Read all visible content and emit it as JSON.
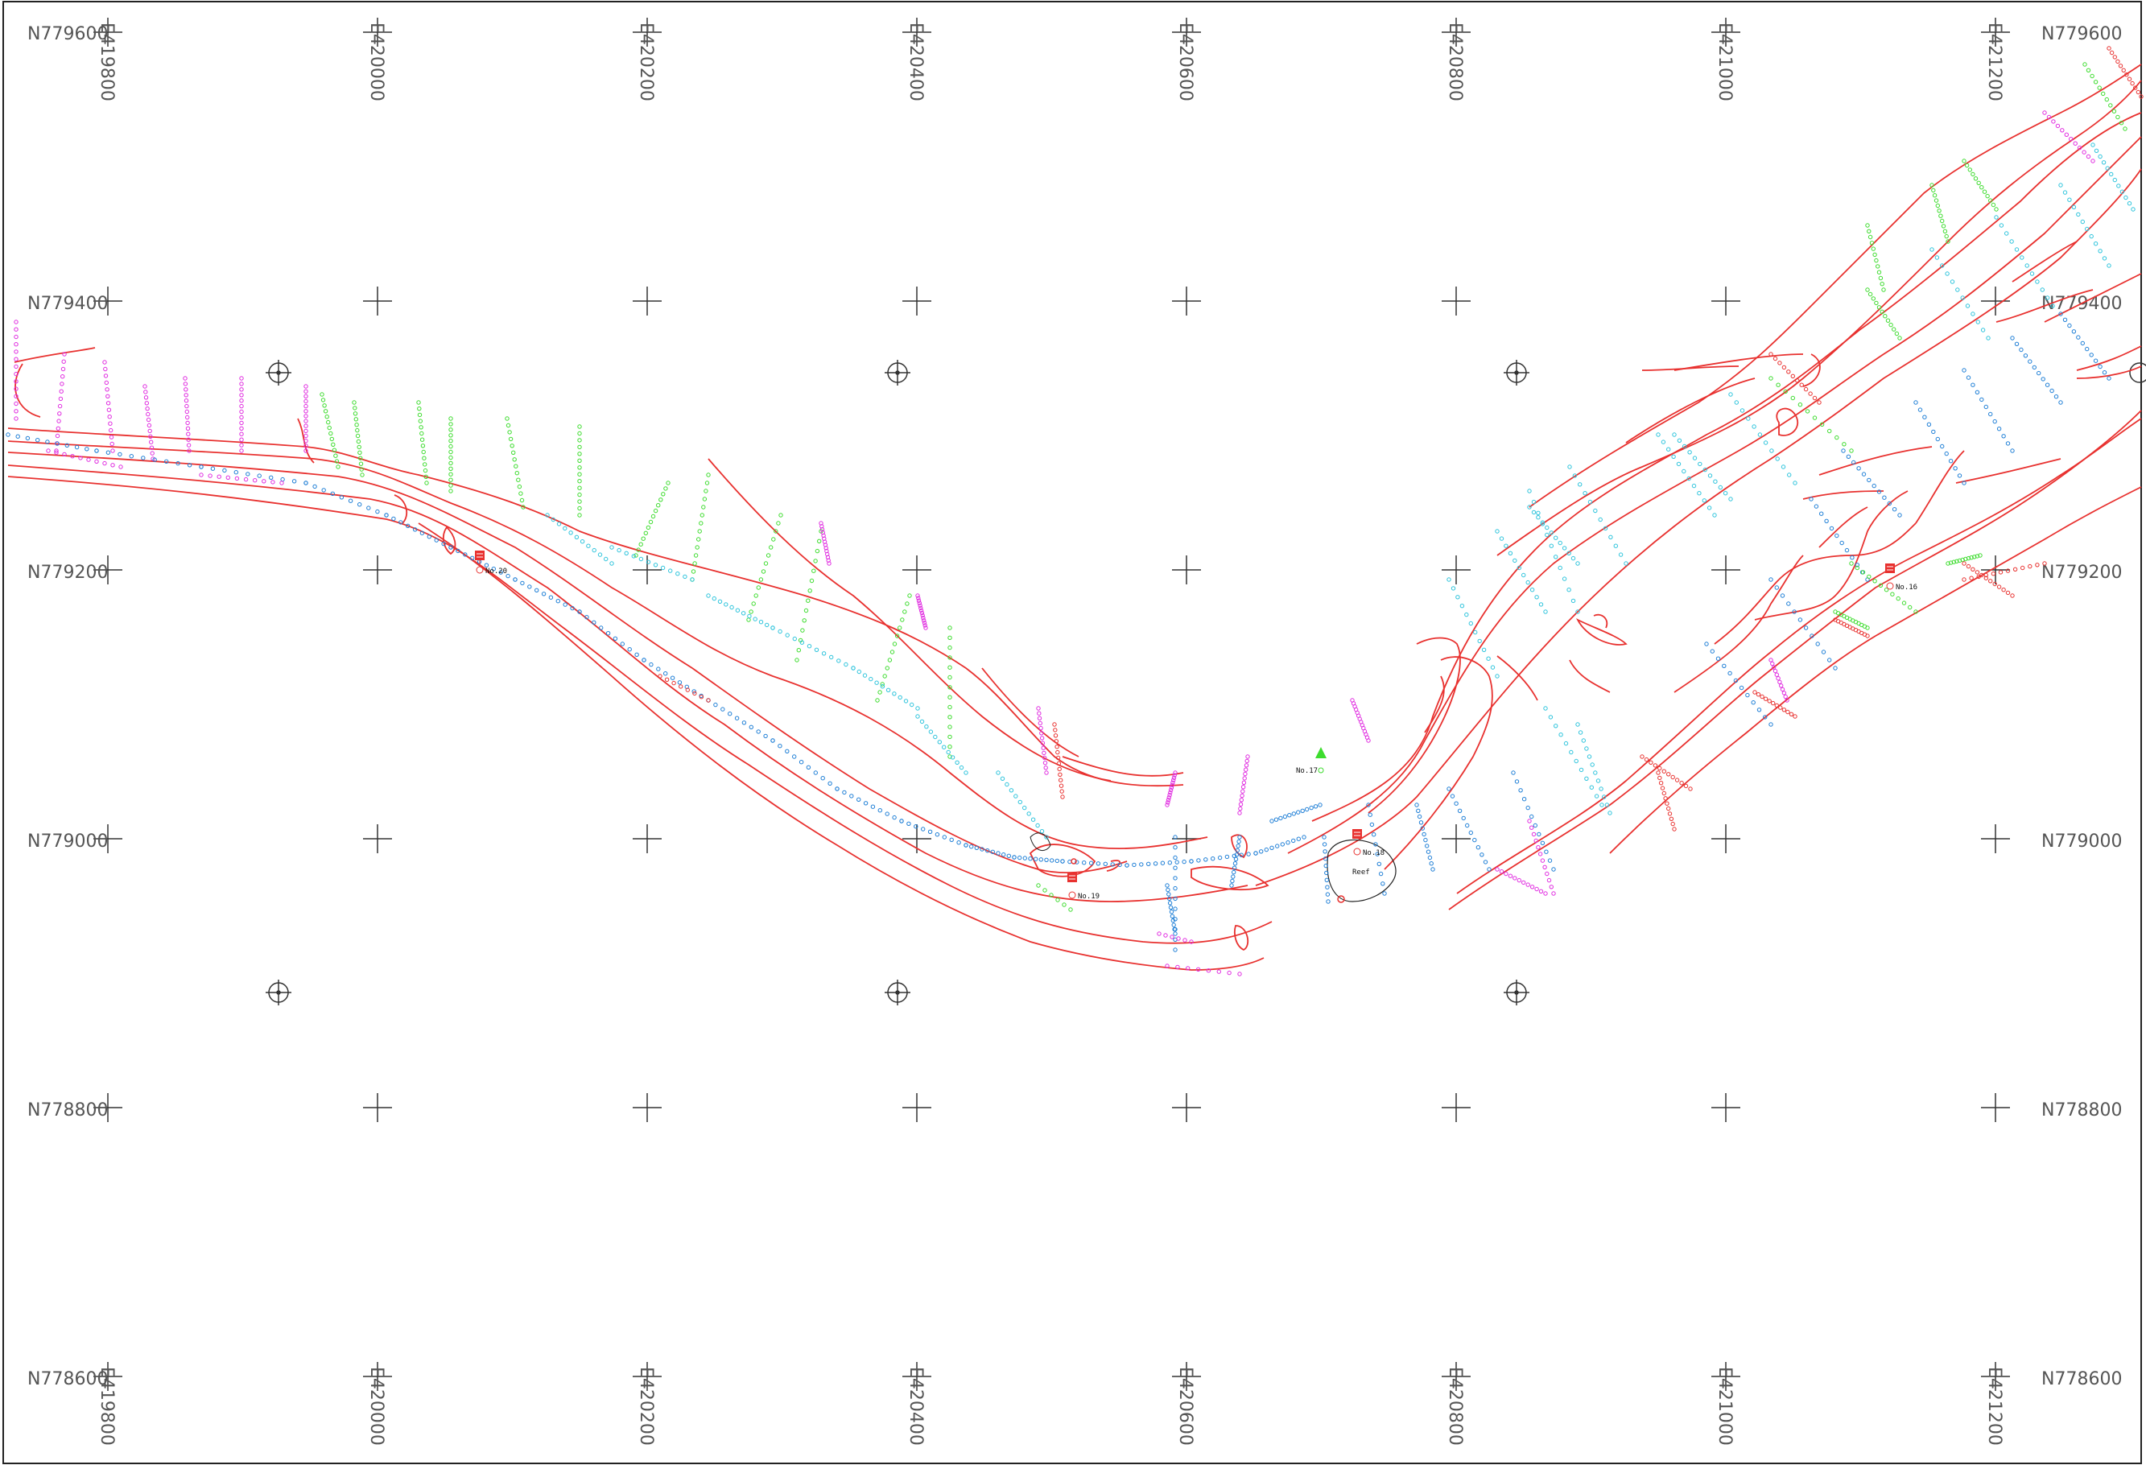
{
  "map": {
    "colors": {
      "contour": "#e8312f",
      "sounding_deep": "#1f7fd6",
      "sounding_mid": "#2ec4dc",
      "sounding_shallow": "#3ddc2e",
      "sounding_high": "#e02ce0",
      "sounding_red": "#e8312f",
      "grid": "#333333",
      "border": "#222222",
      "label": "#555555"
    },
    "eastings": [
      "E419800",
      "E420000",
      "E420200",
      "E420400",
      "E420600",
      "E420800",
      "E421000",
      "E421200"
    ],
    "northings_left": [
      "N779600",
      "N779400",
      "N779200",
      "N779000",
      "N778800",
      "N778600"
    ],
    "northings_right": [
      "N779600",
      "N779400",
      "N779200",
      "N779000",
      "N778800",
      "N778600"
    ],
    "stations": [
      {
        "label": "No.20",
        "icon": "tide-gauge-icon"
      },
      {
        "label": "No.19",
        "icon": "tide-gauge-icon"
      },
      {
        "label": "No.18",
        "icon": "tide-gauge-icon"
      },
      {
        "label": "No.16",
        "icon": "tide-gauge-icon"
      },
      {
        "label": "No.17",
        "icon": "triangle-marker-icon"
      }
    ],
    "reef_label": "Reef"
  }
}
